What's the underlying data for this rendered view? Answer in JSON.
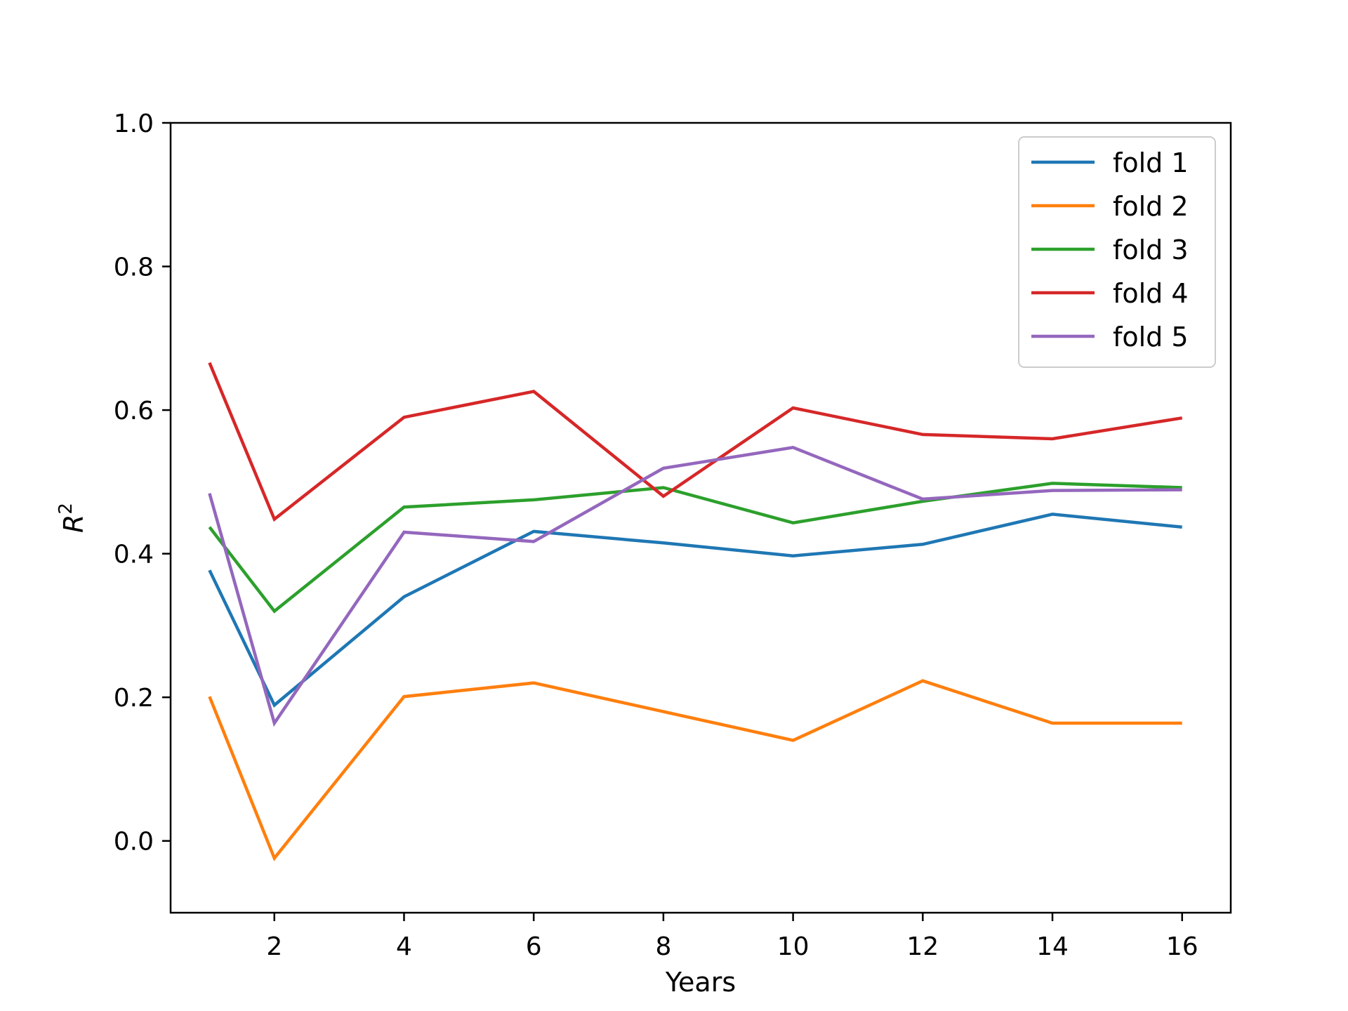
{
  "chart_data": {
    "type": "line",
    "title": "",
    "xlabel": "Years",
    "ylabel": "R",
    "ylabel_superscript": "2",
    "x": [
      1,
      2,
      4,
      6,
      8,
      10,
      12,
      14,
      16
    ],
    "xticks": [
      2,
      4,
      6,
      8,
      10,
      12,
      14,
      16
    ],
    "yticks": [
      0.0,
      0.2,
      0.4,
      0.6,
      0.8,
      1.0
    ],
    "xlim": [
      0.4,
      16.75
    ],
    "ylim": [
      -0.1,
      1.0
    ],
    "grid": false,
    "legend_position": "top-right",
    "series": [
      {
        "name": "fold 1",
        "color": "#1f77b4",
        "values": [
          0.377,
          0.189,
          0.34,
          0.431,
          0.415,
          0.397,
          0.413,
          0.455,
          0.437
        ]
      },
      {
        "name": "fold 2",
        "color": "#ff7f0e",
        "values": [
          0.201,
          -0.024,
          0.201,
          0.22,
          0.18,
          0.14,
          0.223,
          0.164,
          0.164
        ]
      },
      {
        "name": "fold 3",
        "color": "#2ca02c",
        "values": [
          0.437,
          0.32,
          0.465,
          0.475,
          0.492,
          0.443,
          0.473,
          0.498,
          0.492
        ]
      },
      {
        "name": "fold 4",
        "color": "#d62728",
        "values": [
          0.666,
          0.448,
          0.59,
          0.626,
          0.48,
          0.603,
          0.566,
          0.56,
          0.589
        ]
      },
      {
        "name": "fold 5",
        "color": "#9467bd",
        "values": [
          0.484,
          0.164,
          0.43,
          0.417,
          0.519,
          0.548,
          0.476,
          0.488,
          0.489
        ]
      }
    ]
  }
}
